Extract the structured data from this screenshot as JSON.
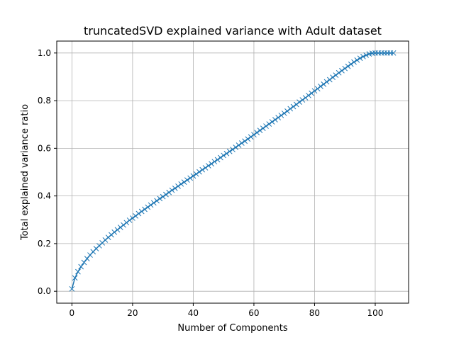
{
  "chart_data": {
    "type": "line",
    "title": "truncatedSVD explained variance with Adult dataset",
    "xlabel": "Number of Components",
    "ylabel": "Total explained variance ratio",
    "xlim": [
      -5,
      111
    ],
    "ylim": [
      -0.05,
      1.05
    ],
    "x_ticks": [
      0,
      20,
      40,
      60,
      80,
      100
    ],
    "y_ticks": [
      0.0,
      0.2,
      0.4,
      0.6,
      0.8,
      1.0
    ],
    "x_tick_labels": [
      "0",
      "20",
      "40",
      "60",
      "80",
      "100"
    ],
    "y_tick_labels": [
      "0.0",
      "0.2",
      "0.4",
      "0.6",
      "0.8",
      "1.0"
    ],
    "grid": true,
    "marker": "x",
    "line_color": "#1f77b4",
    "series": [
      {
        "x": [
          0,
          1,
          2,
          3,
          4,
          5,
          6,
          7,
          8,
          9,
          10,
          11,
          12,
          13,
          14,
          15,
          16,
          17,
          18,
          19,
          20,
          21,
          22,
          23,
          24,
          25,
          26,
          27,
          28,
          29,
          30,
          31,
          32,
          33,
          34,
          35,
          36,
          37,
          38,
          39,
          40,
          41,
          42,
          43,
          44,
          45,
          46,
          47,
          48,
          49,
          50,
          51,
          52,
          53,
          54,
          55,
          56,
          57,
          58,
          59,
          60,
          61,
          62,
          63,
          64,
          65,
          66,
          67,
          68,
          69,
          70,
          71,
          72,
          73,
          74,
          75,
          76,
          77,
          78,
          79,
          80,
          81,
          82,
          83,
          84,
          85,
          86,
          87,
          88,
          89,
          90,
          91,
          92,
          93,
          94,
          95,
          96,
          97,
          98,
          99,
          100,
          101,
          102,
          103,
          104,
          105,
          106
        ],
        "y": [
          0.01,
          0.056,
          0.082,
          0.103,
          0.121,
          0.137,
          0.152,
          0.166,
          0.179,
          0.191,
          0.203,
          0.215,
          0.226,
          0.237,
          0.248,
          0.258,
          0.268,
          0.278,
          0.288,
          0.298,
          0.307,
          0.316,
          0.326,
          0.335,
          0.344,
          0.353,
          0.362,
          0.371,
          0.38,
          0.389,
          0.397,
          0.406,
          0.415,
          0.424,
          0.432,
          0.441,
          0.45,
          0.458,
          0.467,
          0.475,
          0.484,
          0.492,
          0.501,
          0.51,
          0.518,
          0.527,
          0.535,
          0.544,
          0.552,
          0.561,
          0.57,
          0.578,
          0.587,
          0.595,
          0.604,
          0.613,
          0.622,
          0.63,
          0.639,
          0.648,
          0.657,
          0.666,
          0.675,
          0.684,
          0.693,
          0.702,
          0.711,
          0.72,
          0.729,
          0.738,
          0.747,
          0.756,
          0.766,
          0.775,
          0.784,
          0.794,
          0.803,
          0.812,
          0.822,
          0.831,
          0.841,
          0.85,
          0.86,
          0.869,
          0.879,
          0.888,
          0.898,
          0.907,
          0.917,
          0.926,
          0.935,
          0.944,
          0.953,
          0.962,
          0.97,
          0.978,
          0.985,
          0.991,
          0.996,
          0.999,
          1.0,
          1.0,
          1.0,
          1.0,
          1.0,
          1.0,
          1.0
        ]
      }
    ]
  }
}
